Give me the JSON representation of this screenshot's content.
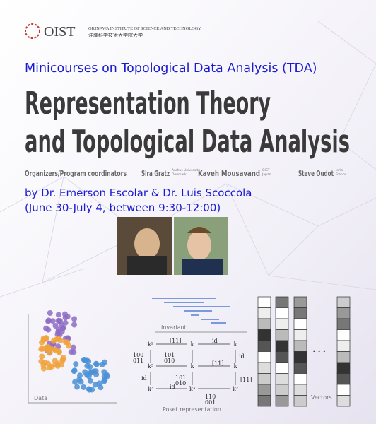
{
  "header": {
    "logo": "OIST",
    "institute": "OKINAWA INSTITUTE OF SCIENCE AND TECHNOLOGY",
    "institute_jp": "沖縄科学技術大学院大学"
  },
  "series_title": "Minicourses on Topological Data Analysis (TDA)",
  "headline": [
    "Representation Theory",
    "and Topological Data Analysis"
  ],
  "organizers": {
    "label": "Organizers/Program coordinators",
    "people": [
      {
        "name": "Sira Gratz",
        "affiliation": [
          "Aarhus University",
          "Denmark"
        ]
      },
      {
        "name": "Kaveh Mousavand",
        "affiliation": [
          "OIST",
          "Japan"
        ]
      },
      {
        "name": "Steve Oudot",
        "affiliation": [
          "Inria",
          "France"
        ]
      }
    ]
  },
  "speakers": "by Dr. Emerson Escolar & Dr. Luis Scoccola",
  "schedule": "(June 30-July 4, between 9:30-12:00)",
  "figure": {
    "data_label": "Data",
    "invariant_label": "Invariant",
    "poset_label": "Poset representation",
    "vectors_label": "Vectors",
    "ellipsis": "• • •",
    "nodes": [
      "k²",
      "k",
      "k",
      "k³",
      "k",
      "k",
      "k³",
      "k³",
      "k²"
    ],
    "edge_labels": [
      "[11]",
      "id",
      "id",
      "[11]",
      "id",
      "[11]",
      "id"
    ],
    "matrices": [
      [
        "100",
        "011"
      ],
      [
        "101",
        "010"
      ],
      [
        "101",
        "010"
      ],
      [
        "110",
        "001"
      ]
    ]
  }
}
